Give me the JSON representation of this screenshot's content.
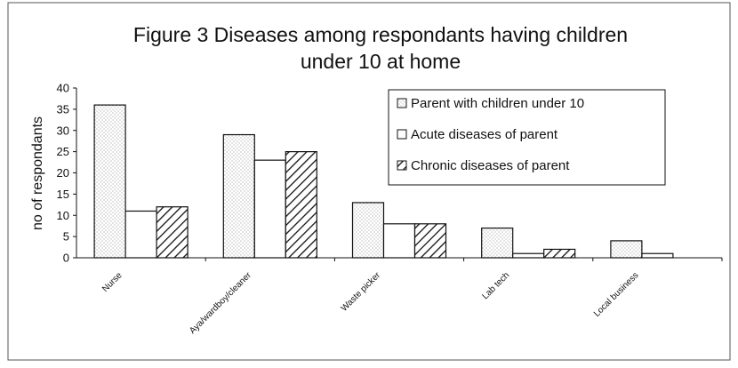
{
  "chart_data": {
    "type": "bar",
    "title_line1": "Figure 3 Diseases among respondants having children",
    "title_line2": "under 10 at home",
    "ylabel": "no of respondants",
    "xlabel": "",
    "ylim": [
      0,
      40
    ],
    "yticks": [
      0,
      5,
      10,
      15,
      20,
      25,
      30,
      35,
      40
    ],
    "grid": false,
    "legend_position": "top-right",
    "categories": [
      "Nurse",
      "Aya/wardboy/cleaner",
      "Waste picker",
      "Lab tech",
      "Local business"
    ],
    "series": [
      {
        "name": "Parent with children under 10",
        "values": [
          36,
          29,
          13,
          7,
          4
        ],
        "pattern": "dotted"
      },
      {
        "name": "Acute diseases of parent",
        "values": [
          11,
          23,
          8,
          1,
          1
        ],
        "pattern": "plain"
      },
      {
        "name": "Chronic diseases of parent",
        "values": [
          12,
          25,
          8,
          2,
          0
        ],
        "pattern": "hatched"
      }
    ],
    "colors": {
      "bar_fill": "#ffffff",
      "stroke": "#111111",
      "dots": "#9a9a9a"
    }
  }
}
